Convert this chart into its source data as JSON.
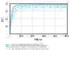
{
  "title": "",
  "xlabel": "H(A/m)",
  "ylabel": "B(T)",
  "xlim": [
    0,
    5000
  ],
  "ylim": [
    0,
    2.0
  ],
  "ytick_vals": [
    0.5,
    1.0,
    1.5,
    2.0
  ],
  "ytick_labels": [
    "0.5",
    "1.0",
    "1.5",
    "2.0"
  ],
  "xtick_vals": [
    1000,
    2000,
    3000,
    4000,
    5000
  ],
  "xtick_labels": [
    "1000",
    "2000",
    "3000",
    "4000",
    "5000"
  ],
  "background": "#ffffff",
  "grid_color": "#d0d0d0",
  "curve_colors": [
    "#4bbfdf",
    "#6dcce8",
    "#8dd8ee",
    "#aae3f5"
  ],
  "curve_styles": [
    "-",
    "--",
    "-.",
    ":"
  ],
  "curve_lw": [
    0.7,
    0.7,
    0.7,
    0.7
  ],
  "legend_labels": [
    "i    oriented crystal laminations, rolling direction",
    "ii   oriented crystal laminations, transverse direction",
    "iii  laminations 1.00kg or 1.5 400Hz for substations",
    "iv   laminations 1.00kg or 1.5 400Hz for aircraft/plane"
  ],
  "legend_colors": [
    "#4bbfdf",
    "#6dcce8",
    "#8dd8ee",
    "#aae3f5"
  ],
  "legend_styles": [
    "-",
    "--",
    "-.",
    ":"
  ]
}
